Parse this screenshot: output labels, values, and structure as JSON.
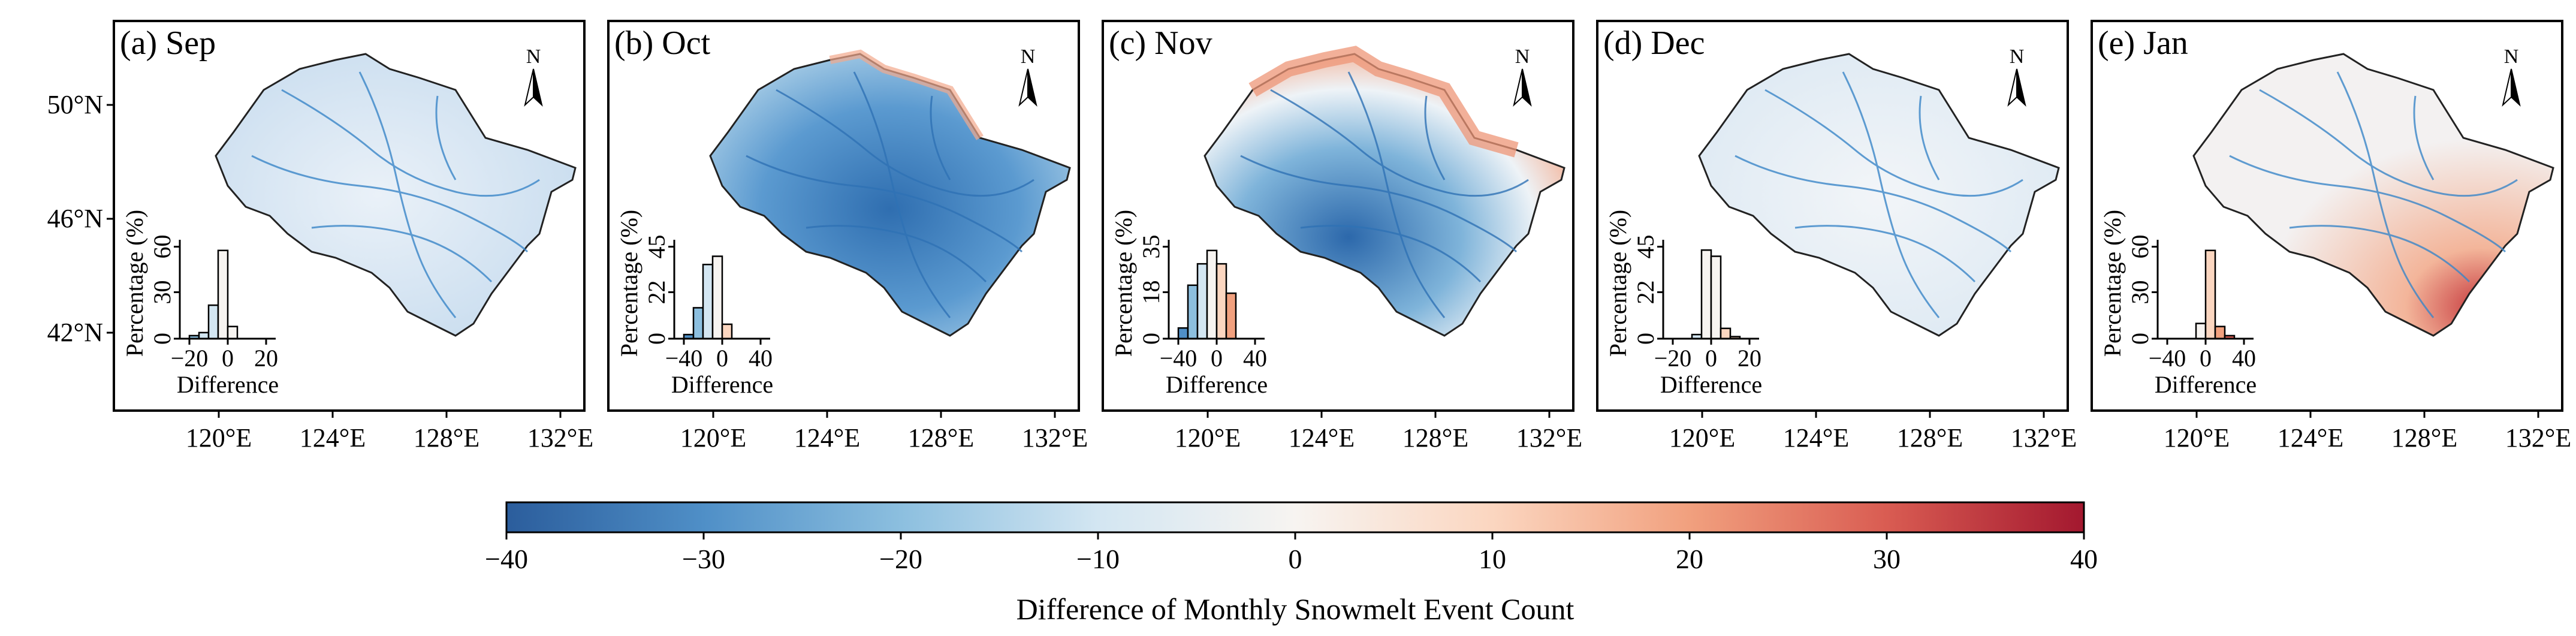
{
  "chart_data": {
    "type": "map-panels",
    "panels": [
      {
        "label": "(a) Sep",
        "hist": {
          "xticks": [
            "−20",
            "0",
            "20"
          ],
          "xrange": [
            -25,
            25
          ],
          "yticks": [
            "0",
            "30",
            "60"
          ],
          "ymax": 65,
          "bins": [
            {
              "x0": -20,
              "x1": -15,
              "pct": 2
            },
            {
              "x0": -15,
              "x1": -10,
              "pct": 4
            },
            {
              "x0": -10,
              "x1": -5,
              "pct": 22
            },
            {
              "x0": -5,
              "x1": 0,
              "pct": 58
            },
            {
              "x0": 0,
              "x1": 5,
              "pct": 8
            }
          ]
        }
      },
      {
        "label": "(b) Oct",
        "hist": {
          "xticks": [
            "−40",
            "0",
            "40"
          ],
          "xrange": [
            -50,
            50
          ],
          "yticks": [
            "0",
            "22",
            "45"
          ],
          "ymax": 48,
          "bins": [
            {
              "x0": -40,
              "x1": -30,
              "pct": 2
            },
            {
              "x0": -30,
              "x1": -20,
              "pct": 15
            },
            {
              "x0": -20,
              "x1": -10,
              "pct": 36
            },
            {
              "x0": -10,
              "x1": 0,
              "pct": 40
            },
            {
              "x0": 0,
              "x1": 10,
              "pct": 7
            }
          ]
        }
      },
      {
        "label": "(c) Nov",
        "hist": {
          "xticks": [
            "−40",
            "0",
            "40"
          ],
          "xrange": [
            -50,
            50
          ],
          "yticks": [
            "0",
            "18",
            "35"
          ],
          "ymax": 37,
          "bins": [
            {
              "x0": -40,
              "x1": -30,
              "pct": 4
            },
            {
              "x0": -30,
              "x1": -20,
              "pct": 20
            },
            {
              "x0": -20,
              "x1": -10,
              "pct": 28
            },
            {
              "x0": -10,
              "x1": 0,
              "pct": 33
            },
            {
              "x0": 0,
              "x1": 10,
              "pct": 28
            },
            {
              "x0": 10,
              "x1": 20,
              "pct": 17
            }
          ]
        }
      },
      {
        "label": "(d) Dec",
        "hist": {
          "xticks": [
            "−20",
            "0",
            "20"
          ],
          "xrange": [
            -25,
            25
          ],
          "yticks": [
            "0",
            "22",
            "45"
          ],
          "ymax": 48,
          "bins": [
            {
              "x0": -10,
              "x1": -5,
              "pct": 2
            },
            {
              "x0": -5,
              "x1": 0,
              "pct": 43
            },
            {
              "x0": 0,
              "x1": 5,
              "pct": 40
            },
            {
              "x0": 5,
              "x1": 10,
              "pct": 5
            },
            {
              "x0": 10,
              "x1": 15,
              "pct": 1
            }
          ]
        }
      },
      {
        "label": "(e) Jan",
        "hist": {
          "xticks": [
            "−40",
            "0",
            "40"
          ],
          "xrange": [
            -50,
            50
          ],
          "yticks": [
            "0",
            "30",
            "60"
          ],
          "ymax": 65,
          "bins": [
            {
              "x0": -10,
              "x1": 0,
              "pct": 10
            },
            {
              "x0": 0,
              "x1": 10,
              "pct": 58
            },
            {
              "x0": 10,
              "x1": 20,
              "pct": 8
            },
            {
              "x0": 20,
              "x1": 30,
              "pct": 2
            }
          ]
        }
      }
    ],
    "north_arrow": "N",
    "x_ticks": [
      "120°E",
      "124°E",
      "128°E",
      "132°E"
    ],
    "y_ticks": [
      "50°N",
      "46°N",
      "42°N"
    ],
    "hist_xlabel": "Difference",
    "hist_ylabel": "Percentage (%)",
    "colorbar": {
      "ticks": [
        "−40",
        "−30",
        "−20",
        "−10",
        "0",
        "10",
        "20",
        "30",
        "40"
      ],
      "range": [
        -40,
        40
      ],
      "label": "Difference of Monthly Snowmelt Event Count",
      "colors": [
        "#2b5d9c",
        "#4f8fc7",
        "#8cbfdf",
        "#d3e6f2",
        "#f7f4f1",
        "#fbd6c0",
        "#f1a07e",
        "#d95c52",
        "#a3182f"
      ]
    }
  }
}
